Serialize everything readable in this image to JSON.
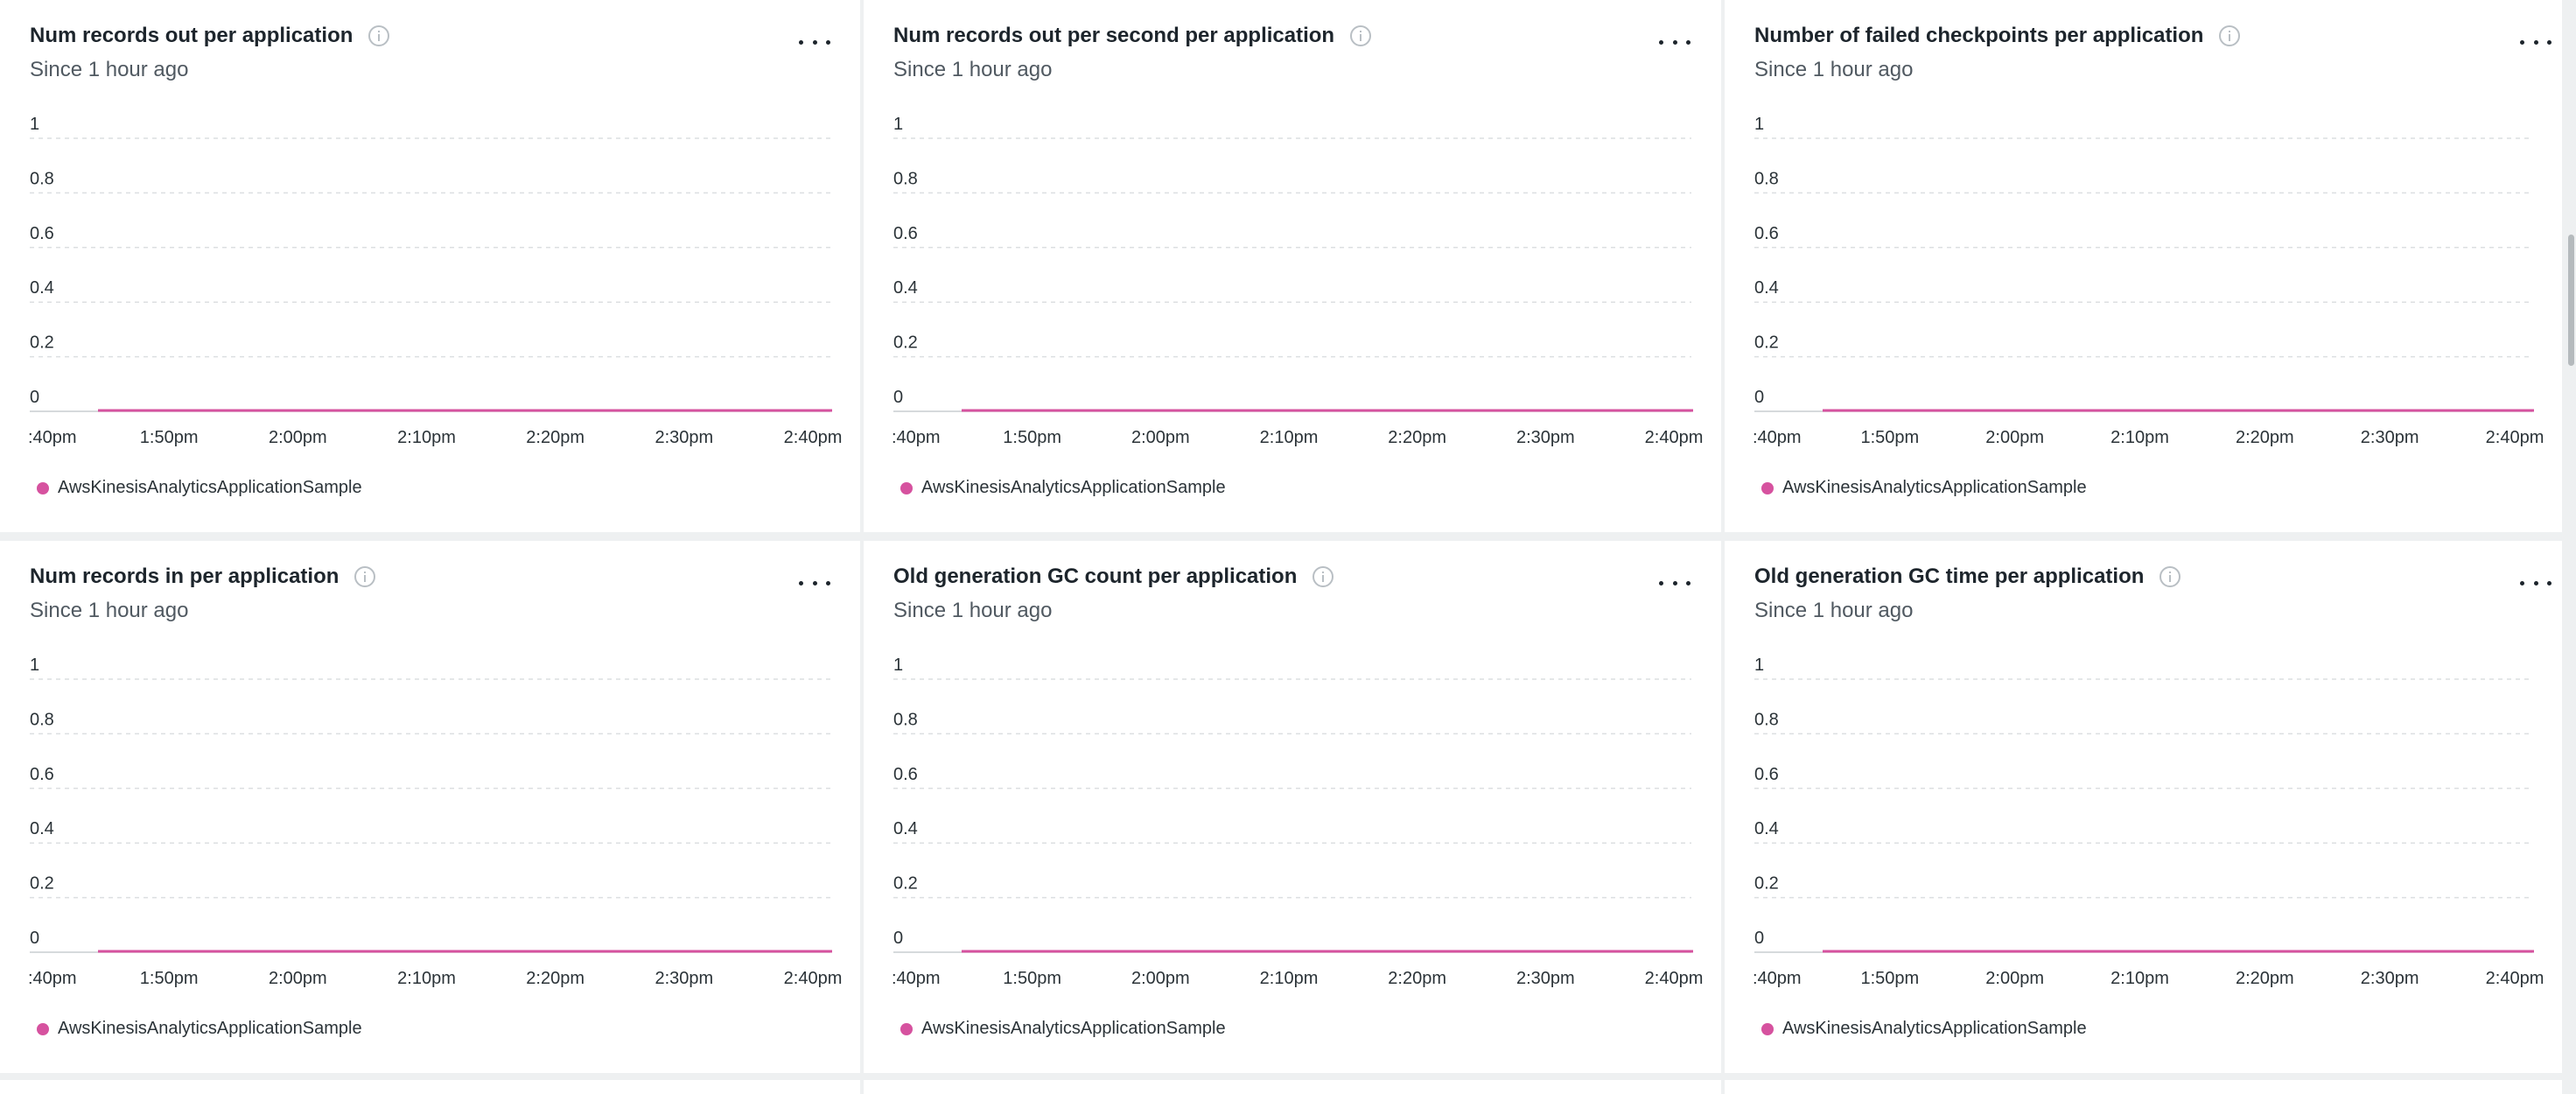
{
  "colors": {
    "series": "#d6529f",
    "grid": "#dcdfe1",
    "axis": "#c9cdd0"
  },
  "icons": {
    "info": "info-circle-icon",
    "more": "ellipsis-icon"
  },
  "cards": [
    {
      "title": "Num records out per application",
      "subtitle": "Since 1 hour ago",
      "legend": "AwsKinesisAnalyticsApplicationSample",
      "chart_data": {
        "type": "line",
        "ylim": [
          0,
          1
        ],
        "y_ticks": [
          "1",
          "0.8",
          "0.6",
          "0.4",
          "0.2",
          "0"
        ],
        "x_ticks": [
          ":40pm",
          "1:50pm",
          "2:00pm",
          "2:10pm",
          "2:20pm",
          "2:30pm",
          "2:40pm"
        ],
        "series": [
          {
            "name": "AwsKinesisAnalyticsApplicationSample",
            "values": [
              0,
              0
            ]
          }
        ]
      }
    },
    {
      "title": "Num records out per second per application",
      "subtitle": "Since 1 hour ago",
      "legend": "AwsKinesisAnalyticsApplicationSample",
      "chart_data": {
        "type": "line",
        "ylim": [
          0,
          1
        ],
        "y_ticks": [
          "1",
          "0.8",
          "0.6",
          "0.4",
          "0.2",
          "0"
        ],
        "x_ticks": [
          ":40pm",
          "1:50pm",
          "2:00pm",
          "2:10pm",
          "2:20pm",
          "2:30pm",
          "2:40pm"
        ],
        "series": [
          {
            "name": "AwsKinesisAnalyticsApplicationSample",
            "values": [
              0,
              0
            ]
          }
        ]
      }
    },
    {
      "title": "Number of failed checkpoints per application",
      "subtitle": "Since 1 hour ago",
      "legend": "AwsKinesisAnalyticsApplicationSample",
      "chart_data": {
        "type": "line",
        "ylim": [
          0,
          1
        ],
        "y_ticks": [
          "1",
          "0.8",
          "0.6",
          "0.4",
          "0.2",
          "0"
        ],
        "x_ticks": [
          ":40pm",
          "1:50pm",
          "2:00pm",
          "2:10pm",
          "2:20pm",
          "2:30pm",
          "2:40pm"
        ],
        "series": [
          {
            "name": "AwsKinesisAnalyticsApplicationSample",
            "values": [
              0,
              0
            ]
          }
        ]
      }
    },
    {
      "title": "Num records in per application",
      "subtitle": "Since 1 hour ago",
      "legend": "AwsKinesisAnalyticsApplicationSample",
      "chart_data": {
        "type": "line",
        "ylim": [
          0,
          1
        ],
        "y_ticks": [
          "1",
          "0.8",
          "0.6",
          "0.4",
          "0.2",
          "0"
        ],
        "x_ticks": [
          ":40pm",
          "1:50pm",
          "2:00pm",
          "2:10pm",
          "2:20pm",
          "2:30pm",
          "2:40pm"
        ],
        "series": [
          {
            "name": "AwsKinesisAnalyticsApplicationSample",
            "values": [
              0,
              0
            ]
          }
        ]
      }
    },
    {
      "title": "Old generation GC count per application",
      "subtitle": "Since 1 hour ago",
      "legend": "AwsKinesisAnalyticsApplicationSample",
      "chart_data": {
        "type": "line",
        "ylim": [
          0,
          1
        ],
        "y_ticks": [
          "1",
          "0.8",
          "0.6",
          "0.4",
          "0.2",
          "0"
        ],
        "x_ticks": [
          ":40pm",
          "1:50pm",
          "2:00pm",
          "2:10pm",
          "2:20pm",
          "2:30pm",
          "2:40pm"
        ],
        "series": [
          {
            "name": "AwsKinesisAnalyticsApplicationSample",
            "values": [
              0,
              0
            ]
          }
        ]
      }
    },
    {
      "title": "Old generation GC time per application",
      "subtitle": "Since 1 hour ago",
      "legend": "AwsKinesisAnalyticsApplicationSample",
      "chart_data": {
        "type": "line",
        "ylim": [
          0,
          1
        ],
        "y_ticks": [
          "1",
          "0.8",
          "0.6",
          "0.4",
          "0.2",
          "0"
        ],
        "x_ticks": [
          ":40pm",
          "1:50pm",
          "2:00pm",
          "2:10pm",
          "2:20pm",
          "2:30pm",
          "2:40pm"
        ],
        "series": [
          {
            "name": "AwsKinesisAnalyticsApplicationSample",
            "values": [
              0,
              0
            ]
          }
        ]
      }
    }
  ]
}
